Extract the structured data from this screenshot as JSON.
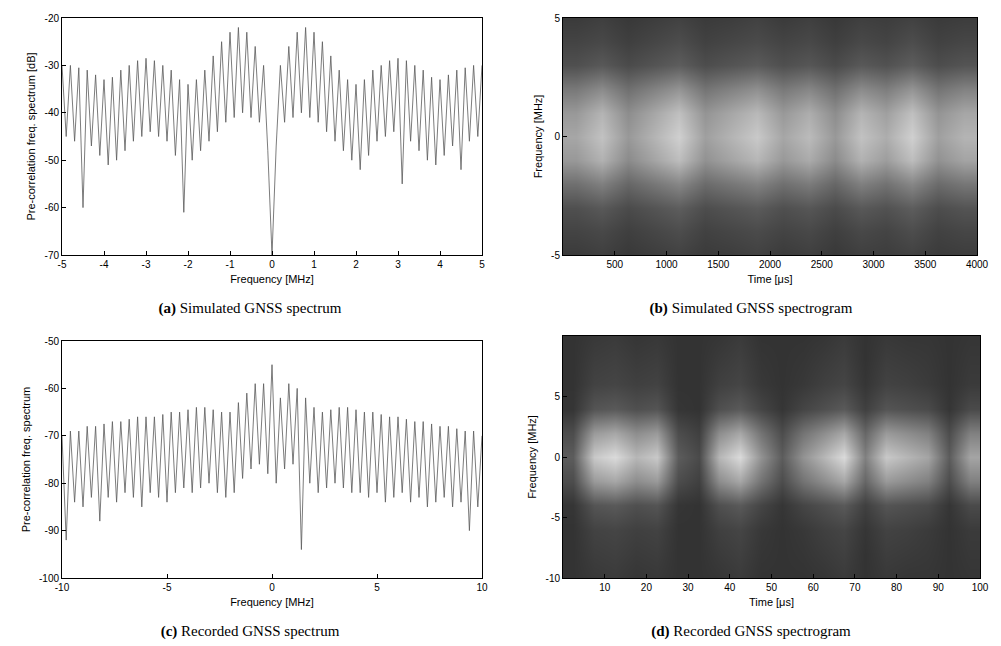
{
  "chart_data": [
    {
      "type": "line",
      "label": "(a)",
      "caption": "Simulated GNSS spectrum",
      "xlabel": "Frequency [MHz]",
      "ylabel": "Pre-correlation freq. spectrum [dB]",
      "color": "#5a5a5a",
      "grid": false,
      "xlim": [
        -5,
        5
      ],
      "xticks": [
        -5,
        -4,
        -3,
        -2,
        -1,
        0,
        1,
        2,
        3,
        4,
        5
      ],
      "ylim": [
        -70,
        -20
      ],
      "yticks": [
        -70,
        -60,
        -50,
        -40,
        -30,
        -20
      ],
      "x": [
        -5.0,
        -4.9,
        -4.8,
        -4.7,
        -4.6,
        -4.5,
        -4.4,
        -4.3,
        -4.2,
        -4.1,
        -4.0,
        -3.9,
        -3.8,
        -3.7,
        -3.6,
        -3.5,
        -3.4,
        -3.3,
        -3.2,
        -3.1,
        -3.0,
        -2.9,
        -2.8,
        -2.7,
        -2.6,
        -2.5,
        -2.4,
        -2.3,
        -2.2,
        -2.1,
        -2.0,
        -1.9,
        -1.8,
        -1.7,
        -1.6,
        -1.5,
        -1.4,
        -1.3,
        -1.2,
        -1.1,
        -1.0,
        -0.9,
        -0.8,
        -0.7,
        -0.6,
        -0.5,
        -0.4,
        -0.3,
        -0.2,
        -0.1,
        0,
        0.1,
        0.2,
        0.3,
        0.4,
        0.5,
        0.6,
        0.7,
        0.8,
        0.9,
        1.0,
        1.1,
        1.2,
        1.3,
        1.4,
        1.5,
        1.6,
        1.7,
        1.8,
        1.9,
        2.0,
        2.1,
        2.2,
        2.3,
        2.4,
        2.5,
        2.6,
        2.7,
        2.8,
        2.9,
        3.0,
        3.1,
        3.2,
        3.3,
        3.4,
        3.5,
        3.6,
        3.7,
        3.8,
        3.9,
        4.0,
        4.1,
        4.2,
        4.3,
        4.4,
        4.5,
        4.6,
        4.7,
        4.8,
        4.9,
        5.0
      ],
      "values": [
        -30,
        -45,
        -30,
        -46,
        -30.5,
        -60,
        -31,
        -47,
        -32,
        -49,
        -33,
        -51,
        -32.5,
        -50,
        -31,
        -48,
        -30,
        -46,
        -29,
        -45,
        -28.5,
        -44,
        -29,
        -45,
        -30,
        -46,
        -31,
        -49,
        -33,
        -61,
        -34,
        -50,
        -33,
        -48,
        -31,
        -46,
        -28,
        -44,
        -25,
        -42,
        -23,
        -41,
        -22,
        -40,
        -23,
        -41,
        -26,
        -42,
        -30,
        -48,
        -70,
        -47,
        -30,
        -42,
        -26,
        -41,
        -23,
        -40,
        -22,
        -41,
        -23,
        -42,
        -25,
        -44,
        -28,
        -46,
        -31,
        -48,
        -33,
        -50,
        -34,
        -52,
        -33,
        -49,
        -31,
        -46,
        -30,
        -45,
        -29,
        -44,
        -28.5,
        -55,
        -29,
        -46,
        -30,
        -48,
        -31,
        -50,
        -32.5,
        -51,
        -33,
        -49,
        -32,
        -47,
        -31,
        -52,
        -30.5,
        -46,
        -30,
        -45,
        -30
      ]
    },
    {
      "type": "heatmap",
      "label": "(b)",
      "caption": "Simulated GNSS spectrogram",
      "xlabel": "Time [μs]",
      "ylabel": "Frequency [MHz]",
      "grid": false,
      "xlim": [
        0,
        4000
      ],
      "xticks": [
        500,
        1000,
        1500,
        2000,
        2500,
        3000,
        3500,
        4000
      ],
      "ylim": [
        -5,
        5
      ],
      "yticks": [
        -5,
        0,
        5
      ],
      "zlim": [
        0,
        0.9
      ],
      "x": [
        125,
        375,
        625,
        875,
        1125,
        1375,
        1625,
        1875,
        2125,
        2375,
        2625,
        2875,
        3125,
        3375,
        3625,
        3875
      ],
      "y": [
        -5,
        -4,
        -3,
        -2,
        -1,
        0,
        1,
        2,
        3,
        4,
        5
      ],
      "z": [
        [
          0.09,
          0.11,
          0.08,
          0.1,
          0.12,
          0.09,
          0.1,
          0.12,
          0.09,
          0.11,
          0.08,
          0.11,
          0.1,
          0.12,
          0.09,
          0.1
        ],
        [
          0.13,
          0.15,
          0.11,
          0.14,
          0.17,
          0.12,
          0.14,
          0.16,
          0.13,
          0.15,
          0.11,
          0.15,
          0.13,
          0.17,
          0.12,
          0.14
        ],
        [
          0.18,
          0.22,
          0.16,
          0.2,
          0.24,
          0.17,
          0.2,
          0.23,
          0.18,
          0.21,
          0.16,
          0.22,
          0.19,
          0.24,
          0.17,
          0.2
        ],
        [
          0.32,
          0.39,
          0.28,
          0.35,
          0.42,
          0.3,
          0.35,
          0.4,
          0.32,
          0.37,
          0.28,
          0.39,
          0.33,
          0.42,
          0.3,
          0.35
        ],
        [
          0.5,
          0.61,
          0.44,
          0.55,
          0.66,
          0.47,
          0.55,
          0.63,
          0.5,
          0.58,
          0.44,
          0.61,
          0.52,
          0.66,
          0.47,
          0.55
        ],
        [
          0.56,
          0.68,
          0.5,
          0.62,
          0.74,
          0.53,
          0.62,
          0.71,
          0.56,
          0.65,
          0.5,
          0.68,
          0.59,
          0.74,
          0.53,
          0.62
        ],
        [
          0.5,
          0.62,
          0.45,
          0.56,
          0.67,
          0.48,
          0.56,
          0.64,
          0.5,
          0.59,
          0.45,
          0.62,
          0.53,
          0.67,
          0.48,
          0.56
        ],
        [
          0.36,
          0.44,
          0.32,
          0.4,
          0.48,
          0.34,
          0.4,
          0.46,
          0.36,
          0.42,
          0.32,
          0.44,
          0.38,
          0.48,
          0.34,
          0.4
        ],
        [
          0.18,
          0.22,
          0.16,
          0.2,
          0.24,
          0.17,
          0.2,
          0.23,
          0.18,
          0.21,
          0.16,
          0.22,
          0.19,
          0.24,
          0.17,
          0.2
        ],
        [
          0.13,
          0.15,
          0.11,
          0.14,
          0.17,
          0.12,
          0.14,
          0.16,
          0.13,
          0.15,
          0.11,
          0.15,
          0.13,
          0.17,
          0.12,
          0.14
        ],
        [
          0.09,
          0.11,
          0.08,
          0.1,
          0.12,
          0.09,
          0.1,
          0.12,
          0.09,
          0.11,
          0.08,
          0.11,
          0.1,
          0.12,
          0.09,
          0.1
        ]
      ]
    },
    {
      "type": "line",
      "label": "(c)",
      "caption": "Recorded GNSS spectrum",
      "xlabel": "Frequency [MHz]",
      "ylabel": "Pre-correlation freq. spectrum",
      "color": "#5a5a5a",
      "grid": false,
      "xlim": [
        -10,
        10
      ],
      "xticks": [
        -10,
        -5,
        0,
        5,
        10
      ],
      "ylim": [
        -100,
        -50
      ],
      "yticks": [
        -100,
        -90,
        -80,
        -70,
        -60,
        -50
      ],
      "x": [
        -10.0,
        -9.8,
        -9.6,
        -9.4,
        -9.2,
        -9.0,
        -8.8,
        -8.6,
        -8.4,
        -8.2,
        -8.0,
        -7.8,
        -7.6,
        -7.4,
        -7.2,
        -7.0,
        -6.8,
        -6.6,
        -6.4,
        -6.2,
        -6.0,
        -5.8,
        -5.6,
        -5.4,
        -5.2,
        -5.0,
        -4.8,
        -4.6,
        -4.4,
        -4.2,
        -4.0,
        -3.8,
        -3.6,
        -3.4,
        -3.2,
        -3.0,
        -2.8,
        -2.6,
        -2.4,
        -2.2,
        -2.0,
        -1.8,
        -1.6,
        -1.4,
        -1.2,
        -1.0,
        -0.8,
        -0.6,
        -0.4,
        -0.2,
        0,
        0.2,
        0.4,
        0.6,
        0.8,
        1.0,
        1.2,
        1.4,
        1.6,
        1.8,
        2.0,
        2.2,
        2.4,
        2.6,
        2.8,
        3.0,
        3.2,
        3.4,
        3.6,
        3.8,
        4.0,
        4.2,
        4.4,
        4.6,
        4.8,
        5.0,
        5.2,
        5.4,
        5.6,
        5.8,
        6.0,
        6.2,
        6.4,
        6.6,
        6.8,
        7.0,
        7.2,
        7.4,
        7.6,
        7.8,
        8.0,
        8.2,
        8.4,
        8.6,
        8.8,
        9.0,
        9.2,
        9.4,
        9.6,
        9.8,
        10.0
      ],
      "values": [
        -70,
        -92,
        -69,
        -84,
        -69,
        -85,
        -68,
        -83,
        -68,
        -88,
        -67.5,
        -83,
        -67,
        -84,
        -67,
        -82,
        -66.5,
        -83,
        -66,
        -85,
        -66,
        -82,
        -66,
        -83,
        -65.5,
        -84,
        -65,
        -82,
        -65,
        -81,
        -64.5,
        -82,
        -64,
        -81,
        -64,
        -80,
        -64.5,
        -82,
        -65,
        -83,
        -65,
        -82,
        -63,
        -79,
        -61,
        -77,
        -59,
        -76,
        -59,
        -78,
        -55,
        -80,
        -62,
        -77,
        -59,
        -76,
        -60,
        -94,
        -62,
        -80,
        -64,
        -82,
        -65,
        -81,
        -64.5,
        -80,
        -64,
        -81,
        -64,
        -82,
        -64.5,
        -82,
        -65,
        -83,
        -65,
        -82,
        -65.5,
        -84,
        -66,
        -83,
        -66,
        -82,
        -66.5,
        -84,
        -67,
        -83,
        -67,
        -85,
        -67.5,
        -84,
        -68,
        -83,
        -68,
        -85,
        -68.5,
        -84,
        -69,
        -90,
        -69,
        -85,
        -70
      ]
    },
    {
      "type": "heatmap",
      "label": "(d)",
      "caption": "Recorded GNSS spectrogram",
      "xlabel": "Time [μs]",
      "ylabel": "Frequency [MHz]",
      "grid": false,
      "xlim": [
        0,
        100
      ],
      "xticks": [
        10,
        20,
        30,
        40,
        50,
        60,
        70,
        80,
        90,
        100
      ],
      "ylim": [
        -10,
        10
      ],
      "yticks": [
        -10,
        -5,
        0,
        5
      ],
      "zlim": [
        0,
        0.8
      ],
      "x": [
        2.5,
        7.5,
        12.5,
        17.5,
        22.5,
        27.5,
        32.5,
        37.5,
        42.5,
        47.5,
        52.5,
        57.5,
        62.5,
        67.5,
        72.5,
        77.5,
        82.5,
        87.5,
        92.5,
        97.5
      ],
      "y": [
        -10,
        -8,
        -6,
        -4,
        -2,
        0,
        2,
        4,
        6,
        8,
        10
      ],
      "z": [
        [
          0.05,
          0.07,
          0.08,
          0.06,
          0.07,
          0.05,
          0.05,
          0.06,
          0.08,
          0.05,
          0.05,
          0.05,
          0.06,
          0.08,
          0.05,
          0.07,
          0.06,
          0.06,
          0.05,
          0.06
        ],
        [
          0.05,
          0.09,
          0.1,
          0.08,
          0.09,
          0.05,
          0.05,
          0.08,
          0.1,
          0.06,
          0.05,
          0.06,
          0.08,
          0.1,
          0.05,
          0.09,
          0.08,
          0.07,
          0.05,
          0.07
        ],
        [
          0.05,
          0.11,
          0.12,
          0.1,
          0.11,
          0.05,
          0.05,
          0.1,
          0.12,
          0.07,
          0.05,
          0.07,
          0.1,
          0.12,
          0.06,
          0.11,
          0.1,
          0.08,
          0.05,
          0.08
        ],
        [
          0.06,
          0.18,
          0.2,
          0.16,
          0.18,
          0.06,
          0.05,
          0.16,
          0.2,
          0.12,
          0.06,
          0.12,
          0.16,
          0.2,
          0.1,
          0.18,
          0.16,
          0.14,
          0.06,
          0.14
        ],
        [
          0.15,
          0.45,
          0.5,
          0.4,
          0.45,
          0.15,
          0.1,
          0.4,
          0.5,
          0.3,
          0.15,
          0.3,
          0.4,
          0.5,
          0.25,
          0.45,
          0.4,
          0.35,
          0.15,
          0.35
        ],
        [
          0.21,
          0.63,
          0.7,
          0.56,
          0.63,
          0.21,
          0.14,
          0.56,
          0.7,
          0.42,
          0.21,
          0.42,
          0.56,
          0.7,
          0.35,
          0.63,
          0.56,
          0.49,
          0.21,
          0.49
        ],
        [
          0.15,
          0.45,
          0.5,
          0.4,
          0.45,
          0.15,
          0.1,
          0.4,
          0.5,
          0.3,
          0.15,
          0.3,
          0.4,
          0.5,
          0.25,
          0.45,
          0.4,
          0.35,
          0.15,
          0.35
        ],
        [
          0.06,
          0.18,
          0.2,
          0.16,
          0.18,
          0.06,
          0.05,
          0.16,
          0.2,
          0.12,
          0.06,
          0.12,
          0.16,
          0.2,
          0.1,
          0.18,
          0.16,
          0.14,
          0.06,
          0.14
        ],
        [
          0.05,
          0.11,
          0.12,
          0.1,
          0.11,
          0.05,
          0.05,
          0.1,
          0.12,
          0.07,
          0.05,
          0.07,
          0.1,
          0.12,
          0.06,
          0.11,
          0.1,
          0.08,
          0.05,
          0.08
        ],
        [
          0.05,
          0.09,
          0.1,
          0.08,
          0.09,
          0.05,
          0.05,
          0.08,
          0.1,
          0.06,
          0.05,
          0.06,
          0.08,
          0.1,
          0.05,
          0.09,
          0.08,
          0.07,
          0.05,
          0.07
        ],
        [
          0.05,
          0.07,
          0.08,
          0.06,
          0.07,
          0.05,
          0.05,
          0.06,
          0.08,
          0.05,
          0.05,
          0.05,
          0.06,
          0.08,
          0.05,
          0.07,
          0.06,
          0.06,
          0.05,
          0.06
        ]
      ]
    }
  ]
}
